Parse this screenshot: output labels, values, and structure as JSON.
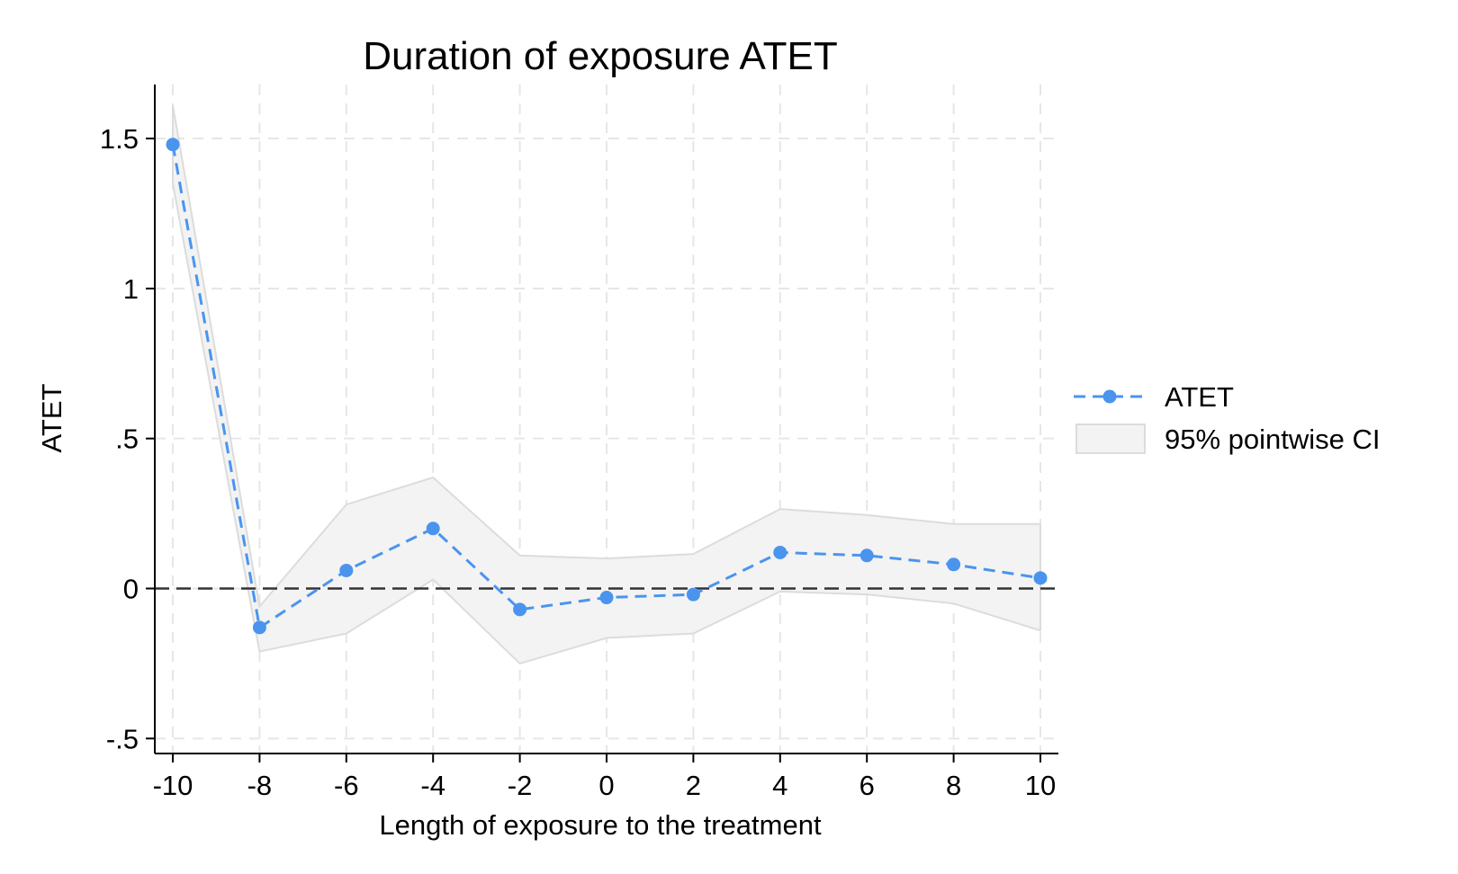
{
  "chart_data": {
    "type": "line",
    "title": "Duration of exposure ATET",
    "xlabel": "Length of exposure to the treatment",
    "ylabel": "ATET",
    "xlim": [
      -10,
      10
    ],
    "ylim": [
      -0.55,
      1.68
    ],
    "x_ticks": [
      -10,
      -8,
      -6,
      -4,
      -2,
      0,
      2,
      4,
      6,
      8,
      10
    ],
    "x_tick_labels": [
      "-10",
      "-8",
      "-6",
      "-4",
      "-2",
      "0",
      "2",
      "4",
      "6",
      "8",
      "10"
    ],
    "y_ticks": [
      -0.5,
      0,
      0.5,
      1,
      1.5
    ],
    "y_tick_labels": [
      "-.5",
      "0",
      ".5",
      "1",
      "1.5"
    ],
    "grid": true,
    "reference_line": 0,
    "legend_position": "right",
    "colors": {
      "series": "#4a94ee",
      "ci_fill": "#f3f3f3",
      "ci_edge": "#dcdcdc",
      "reference": "#333333",
      "grid": "#e6e6e6"
    },
    "series": [
      {
        "name": "ATET",
        "style": "dashed-with-markers",
        "x": [
          -10,
          -8,
          -6,
          -4,
          -2,
          0,
          2,
          4,
          6,
          8,
          10
        ],
        "values": [
          1.48,
          -0.13,
          0.06,
          0.2,
          -0.07,
          -0.03,
          -0.02,
          0.12,
          0.11,
          0.08,
          0.035
        ]
      }
    ],
    "confidence_band": {
      "name": "95% pointwise CI",
      "x": [
        -10,
        -8,
        -6,
        -4,
        -2,
        0,
        2,
        4,
        6,
        8,
        10
      ],
      "lower": [
        1.35,
        -0.21,
        -0.15,
        0.03,
        -0.25,
        -0.165,
        -0.15,
        -0.01,
        -0.02,
        -0.05,
        -0.14
      ],
      "upper": [
        1.61,
        -0.06,
        0.28,
        0.37,
        0.11,
        0.1,
        0.115,
        0.265,
        0.245,
        0.215,
        0.215
      ]
    }
  }
}
